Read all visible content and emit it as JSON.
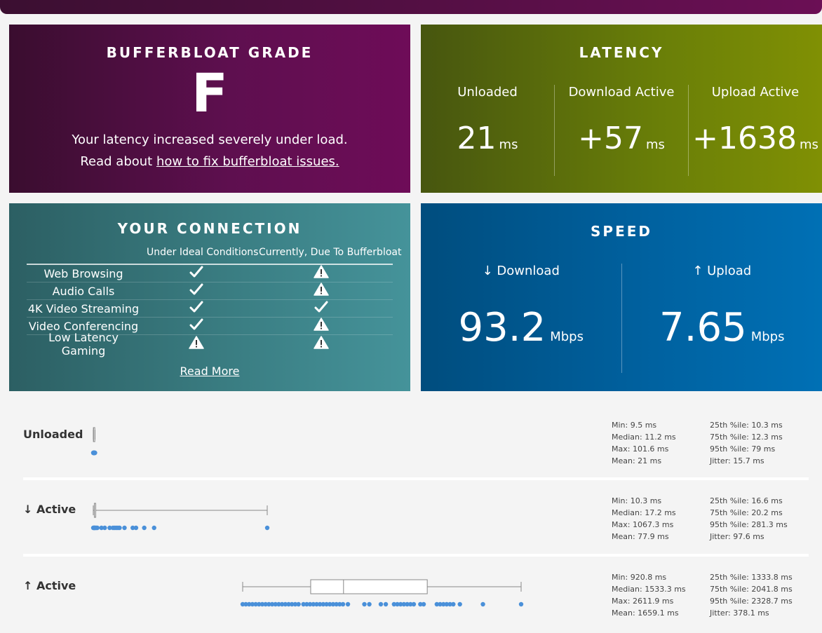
{
  "grade": {
    "title": "BUFFERBLOAT GRADE",
    "letter": "F",
    "message": "Your latency increased severely under load.",
    "read_prefix": "Read about ",
    "read_link": "how to fix bufferbloat issues."
  },
  "latency": {
    "title": "LATENCY",
    "cols": [
      {
        "label": "Unloaded",
        "value": "21",
        "unit": "ms"
      },
      {
        "label": "Download Active",
        "value": "+57",
        "unit": "ms"
      },
      {
        "label": "Upload Active",
        "value": "+1638",
        "unit": "ms"
      }
    ]
  },
  "connection": {
    "title": "YOUR CONNECTION",
    "col1_header": "Under Ideal Conditions",
    "col2_header": "Currently, Due To Bufferbloat",
    "rows": [
      {
        "name": "Web Browsing",
        "ideal": "check",
        "current": "warning"
      },
      {
        "name": "Audio Calls",
        "ideal": "check",
        "current": "warning"
      },
      {
        "name": "4K Video Streaming",
        "ideal": "check",
        "current": "check"
      },
      {
        "name": "Video Conferencing",
        "ideal": "check",
        "current": "warning"
      },
      {
        "name": "Low Latency Gaming",
        "ideal": "warning",
        "current": "warning"
      }
    ],
    "read_more": "Read More"
  },
  "speed": {
    "title": "SPEED",
    "download": {
      "label": "↓ Download",
      "value": "93.2",
      "unit": "Mbps"
    },
    "upload": {
      "label": "↑ Upload",
      "value": "7.65",
      "unit": "Mbps"
    }
  },
  "distributions": [
    {
      "label": "Unloaded",
      "box_ms": {
        "min": 9.5,
        "q1": 10.3,
        "median": 11.2,
        "q3": 12.3,
        "whisker_hi": 20
      },
      "points_ms": [
        9.5,
        10,
        10.3,
        10.8,
        11.2,
        11.8,
        12.3,
        13,
        14,
        15,
        16,
        17,
        18,
        19,
        20
      ],
      "stats_left": [
        "Min: 9.5 ms",
        "Median: 11.2 ms",
        "Max: 101.6 ms",
        "Mean: 21 ms"
      ],
      "stats_right": [
        "25th %ile: 10.3 ms",
        "75th %ile: 12.3 ms",
        "95th %ile: 79 ms",
        "Jitter: 15.7 ms"
      ]
    },
    {
      "label": "↓ Active",
      "box_ms": {
        "min": 10.3,
        "q1": 16.6,
        "median": 17.2,
        "q3": 20.2,
        "whisker_hi": 1067.3
      },
      "points_ms": [
        10.3,
        13,
        16,
        18,
        20,
        25,
        30,
        35,
        60,
        80,
        110,
        130,
        140,
        150,
        160,
        170,
        200,
        250,
        270,
        320,
        380,
        1067.3
      ],
      "stats_left": [
        "Min: 10.3 ms",
        "Median: 17.2 ms",
        "Max: 1067.3 ms",
        "Mean: 77.9 ms"
      ],
      "stats_right": [
        "25th %ile: 16.6 ms",
        "75th %ile: 20.2 ms",
        "95th %ile: 281.3 ms",
        "Jitter: 97.6 ms"
      ]
    },
    {
      "label": "↑ Active",
      "box_ms": {
        "min": 920.8,
        "q1": 1333.8,
        "median": 1533.3,
        "q3": 2041.8,
        "whisker_hi": 2611.9
      },
      "points_ms": [
        920.8,
        940,
        960,
        980,
        1000,
        1020,
        1040,
        1060,
        1080,
        1100,
        1120,
        1140,
        1160,
        1180,
        1200,
        1220,
        1240,
        1260,
        1290,
        1310,
        1330,
        1350,
        1370,
        1390,
        1410,
        1430,
        1450,
        1470,
        1490,
        1510,
        1530,
        1560,
        1660,
        1690,
        1760,
        1790,
        1840,
        1860,
        1880,
        1900,
        1920,
        1940,
        1960,
        2000,
        2020,
        2100,
        2120,
        2140,
        2160,
        2180,
        2200,
        2240,
        2380,
        2611.9
      ],
      "stats_left": [
        "Min: 920.8 ms",
        "Median: 1533.3 ms",
        "Max: 2611.9 ms",
        "Mean: 1659.1 ms"
      ],
      "stats_right": [
        "25th %ile: 1333.8 ms",
        "75th %ile: 2041.8 ms",
        "95th %ile: 2328.7 ms",
        "Jitter: 378.1 ms"
      ]
    }
  ],
  "colors": {
    "accent_dot": "#4a90d9",
    "box_stroke": "#888888"
  }
}
